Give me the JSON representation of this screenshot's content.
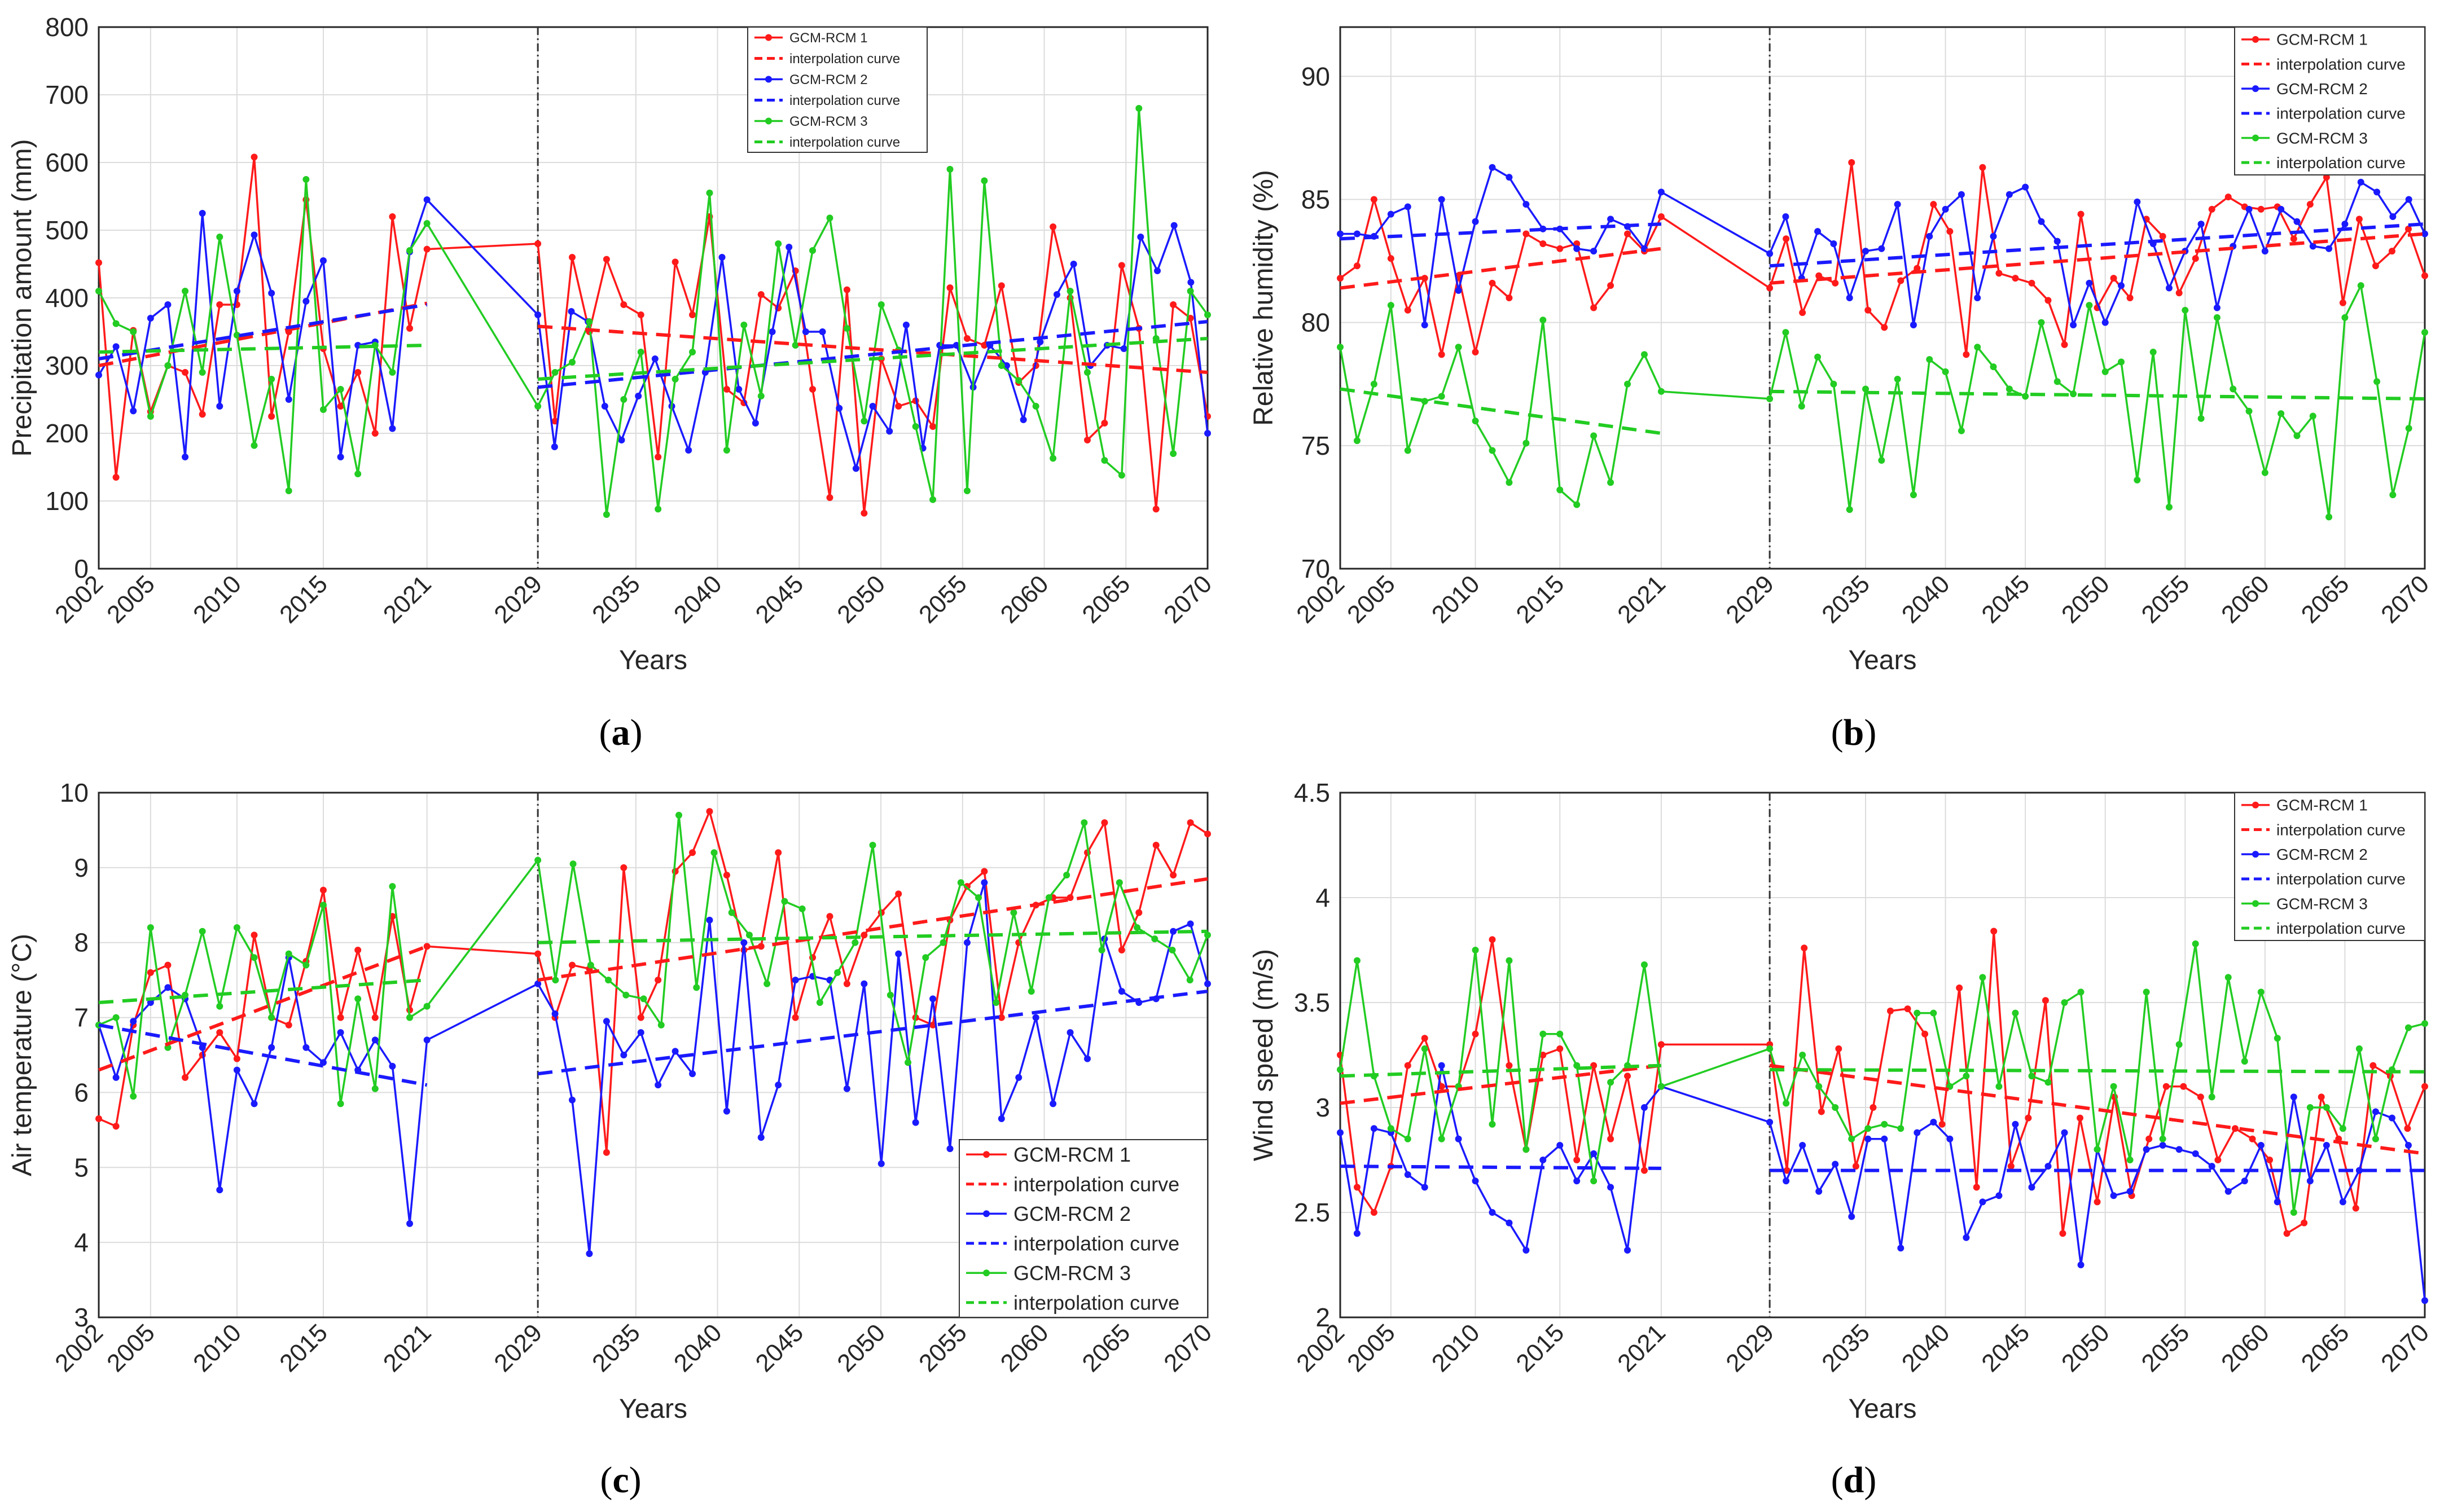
{
  "colors": {
    "model1": "#ff1a1a",
    "model2": "#1a1aff",
    "model3": "#22cc22",
    "axis": "#262626",
    "divider": "#333333"
  },
  "legend_labels": [
    "GCM-RCM 1",
    "interpolation curve",
    "GCM-RCM 2",
    "interpolation curve",
    "GCM-RCM 3",
    "interpolation curve"
  ],
  "chart_data": [
    {
      "type": "line",
      "panel_label": "a",
      "xlabel": "Years",
      "ylabel": "Precipitation amount (mm)",
      "ylim": [
        0,
        800
      ],
      "yticks": [
        0,
        100,
        200,
        300,
        400,
        500,
        600,
        700,
        800
      ],
      "xticks": [
        "2002",
        "2005",
        "2010",
        "2015",
        "2021",
        "2029",
        "2035",
        "2040",
        "2045",
        "2050",
        "2055",
        "2060",
        "2065",
        "2070"
      ],
      "legend_position": "top-right",
      "grid": true,
      "divider_x": 2029,
      "series": [
        {
          "name": "GCM-RCM 1",
          "hist": [
            452,
            135,
            352,
            232,
            300,
            290,
            228,
            390,
            390,
            608,
            225,
            350,
            545,
            325,
            240,
            290,
            200,
            520,
            355,
            472
          ],
          "fut": [
            480,
            218,
            460,
            350,
            457,
            390,
            375,
            165,
            453,
            375,
            520,
            265,
            245,
            405,
            385,
            440,
            265,
            105,
            412,
            82,
            310,
            240,
            248,
            210,
            415,
            340,
            330,
            418,
            275,
            300,
            505,
            400,
            190,
            215,
            448,
            355,
            88,
            390,
            370,
            225
          ]
        },
        {
          "name": "GCM-RCM 2",
          "hist": [
            286,
            328,
            233,
            370,
            390,
            165,
            525,
            240,
            410,
            493,
            407,
            250,
            395,
            455,
            165,
            330,
            335,
            207,
            468,
            545
          ],
          "fut": [
            375,
            180,
            380,
            365,
            240,
            190,
            255,
            310,
            240,
            175,
            290,
            460,
            265,
            215,
            350,
            475,
            350,
            350,
            237,
            148,
            240,
            203,
            360,
            178,
            330,
            330,
            268,
            330,
            300,
            220,
            335,
            405,
            450,
            300,
            330,
            325,
            490,
            440,
            507,
            423,
            200
          ]
        },
        {
          "name": "GCM-RCM 3",
          "hist": [
            410,
            362,
            350,
            225,
            300,
            410,
            290,
            490,
            345,
            182,
            280,
            115,
            575,
            235,
            265,
            140,
            330,
            290,
            470,
            510
          ],
          "fut": [
            240,
            290,
            305,
            365,
            80,
            250,
            320,
            88,
            280,
            320,
            555,
            175,
            360,
            255,
            480,
            330,
            470,
            518,
            355,
            218,
            390,
            323,
            210,
            102,
            590,
            115,
            573,
            300,
            278,
            240,
            163,
            410,
            290,
            160,
            138,
            680,
            340,
            170,
            410,
            375
          ]
        },
        {
          "name": "interpolation curve",
          "of": 1,
          "hist": [
            300,
            392
          ],
          "fut": [
            358,
            290
          ]
        },
        {
          "name": "interpolation curve",
          "of": 2,
          "hist": [
            310,
            390
          ],
          "fut": [
            268,
            365
          ]
        },
        {
          "name": "interpolation curve",
          "of": 3,
          "hist": [
            320,
            330
          ],
          "fut": [
            280,
            340
          ]
        }
      ]
    },
    {
      "type": "line",
      "panel_label": "b",
      "xlabel": "Years",
      "ylabel": "Relative humidity (%)",
      "ylim": [
        70,
        92
      ],
      "yticks": [
        70,
        75,
        80,
        85,
        90
      ],
      "xticks": [
        "2002",
        "2005",
        "2010",
        "2015",
        "2021",
        "2029",
        "2035",
        "2040",
        "2045",
        "2050",
        "2055",
        "2060",
        "2065",
        "2070"
      ],
      "legend_position": "top-right",
      "grid": true,
      "divider_x": 2029,
      "series": [
        {
          "name": "GCM-RCM 1",
          "hist": [
            81.8,
            82.3,
            85.0,
            82.6,
            80.5,
            81.8,
            78.7,
            81.9,
            78.8,
            81.6,
            81.0,
            83.6,
            83.2,
            83.0,
            83.2,
            80.6,
            81.5,
            83.6,
            82.9,
            84.3
          ],
          "fut": [
            81.4,
            83.4,
            80.4,
            81.9,
            81.6,
            86.5,
            80.5,
            79.8,
            81.7,
            82.2,
            84.8,
            83.7,
            78.7,
            86.3,
            82.0,
            81.8,
            81.6,
            80.9,
            79.1,
            84.4,
            80.6,
            81.8,
            81.0,
            84.2,
            83.5,
            81.2,
            82.6,
            84.6,
            85.1,
            84.7,
            84.6,
            84.7,
            83.4,
            84.8,
            85.9,
            80.8,
            84.2,
            82.3,
            82.9,
            83.8,
            81.9
          ]
        },
        {
          "name": "GCM-RCM 2",
          "hist": [
            83.6,
            83.6,
            83.5,
            84.4,
            84.7,
            79.9,
            85.0,
            81.3,
            84.1,
            86.3,
            85.9,
            84.8,
            83.8,
            83.8,
            83.0,
            82.9,
            84.2,
            83.9,
            83.0,
            85.3
          ],
          "fut": [
            82.8,
            84.3,
            81.8,
            83.7,
            83.2,
            81.0,
            82.9,
            83.0,
            84.8,
            79.9,
            83.5,
            84.6,
            85.2,
            81.0,
            83.5,
            85.2,
            85.5,
            84.1,
            83.3,
            79.9,
            81.6,
            80.0,
            81.5,
            84.9,
            83.2,
            81.4,
            82.9,
            84.0,
            80.6,
            83.1,
            84.6,
            82.9,
            84.6,
            84.1,
            83.1,
            83.0,
            84.0,
            85.7,
            85.3,
            84.3,
            85.0,
            83.6
          ]
        },
        {
          "name": "GCM-RCM 3",
          "hist": [
            79.0,
            75.2,
            77.5,
            80.7,
            74.8,
            76.8,
            77.0,
            79.0,
            76.0,
            74.8,
            73.5,
            75.1,
            80.1,
            73.2,
            72.6,
            75.4,
            73.5,
            77.5,
            78.7,
            77.2
          ],
          "fut": [
            76.9,
            79.6,
            76.6,
            78.6,
            77.5,
            72.4,
            77.3,
            74.4,
            77.7,
            73.0,
            78.5,
            78.0,
            75.6,
            79.0,
            78.2,
            77.3,
            77.0,
            80.0,
            77.6,
            77.1,
            80.7,
            78.0,
            78.4,
            73.6,
            78.8,
            72.5,
            80.5,
            76.1,
            80.2,
            77.3,
            76.4,
            73.9,
            76.3,
            75.4,
            76.2,
            72.1,
            80.2,
            81.5,
            77.6,
            73.0,
            75.7,
            79.6
          ]
        },
        {
          "name": "interpolation curve",
          "of": 1,
          "hist": [
            81.4,
            83.0
          ],
          "fut": [
            81.6,
            83.6
          ]
        },
        {
          "name": "interpolation curve",
          "of": 2,
          "hist": [
            83.4,
            84.0
          ],
          "fut": [
            82.3,
            84.0
          ]
        },
        {
          "name": "interpolation curve",
          "of": 3,
          "hist": [
            77.3,
            75.5
          ],
          "fut": [
            77.2,
            76.9
          ]
        }
      ]
    },
    {
      "type": "line",
      "panel_label": "c",
      "xlabel": "Years",
      "ylabel": "Air temperature (°C)",
      "ylim": [
        3,
        10
      ],
      "yticks": [
        3,
        4,
        5,
        6,
        7,
        8,
        9,
        10
      ],
      "xticks": [
        "2002",
        "2005",
        "2010",
        "2015",
        "2021",
        "2029",
        "2035",
        "2040",
        "2045",
        "2050",
        "2055",
        "2060",
        "2065",
        "2070"
      ],
      "legend_position": "bottom-right",
      "grid": true,
      "divider_x": 2029,
      "series": [
        {
          "name": "GCM-RCM 1",
          "hist": [
            5.65,
            5.55,
            6.9,
            7.6,
            7.7,
            6.2,
            6.5,
            6.8,
            6.45,
            8.1,
            7.0,
            6.9,
            7.75,
            8.7,
            7.0,
            7.9,
            7.0,
            8.35,
            7.1,
            7.95
          ],
          "fut": [
            7.85,
            7.0,
            7.7,
            7.65,
            5.2,
            9.0,
            7.0,
            7.5,
            8.95,
            9.2,
            9.75,
            8.9,
            7.9,
            7.95,
            9.2,
            7.0,
            7.8,
            8.35,
            7.45,
            8.1,
            8.4,
            8.65,
            7.0,
            6.9,
            8.3,
            8.75,
            8.95,
            7.0,
            8.0,
            8.5,
            8.6,
            8.6,
            9.2,
            9.6,
            7.9,
            8.4,
            9.3,
            8.9,
            9.6,
            9.45
          ]
        },
        {
          "name": "GCM-RCM 2",
          "hist": [
            6.9,
            6.2,
            6.95,
            7.2,
            7.4,
            7.25,
            6.6,
            4.7,
            6.3,
            5.85,
            6.6,
            7.8,
            6.6,
            6.4,
            6.8,
            6.3,
            6.7,
            6.35,
            4.25,
            6.7
          ],
          "fut": [
            7.45,
            7.05,
            5.9,
            3.85,
            6.95,
            6.5,
            6.8,
            6.1,
            6.55,
            6.25,
            8.3,
            5.75,
            8.0,
            5.4,
            6.1,
            7.5,
            7.55,
            7.5,
            6.05,
            7.45,
            5.05,
            7.85,
            5.6,
            7.25,
            5.25,
            8.0,
            8.8,
            5.65,
            6.2,
            7.0,
            5.85,
            6.8,
            6.45,
            8.05,
            7.35,
            7.2,
            7.25,
            8.15,
            8.25,
            7.45
          ]
        },
        {
          "name": "GCM-RCM 3",
          "hist": [
            6.9,
            7.0,
            5.95,
            8.2,
            6.6,
            7.3,
            8.15,
            7.15,
            8.2,
            7.8,
            7.0,
            7.85,
            7.7,
            8.5,
            5.85,
            7.25,
            6.05,
            8.75,
            7.0,
            7.15
          ],
          "fut": [
            9.1,
            7.5,
            9.05,
            7.7,
            7.5,
            7.3,
            7.25,
            6.9,
            9.7,
            7.4,
            9.2,
            8.4,
            8.1,
            7.45,
            8.55,
            8.45,
            7.2,
            7.6,
            8.0,
            9.3,
            7.3,
            6.4,
            7.8,
            8.0,
            8.8,
            8.6,
            7.2,
            8.4,
            7.35,
            8.6,
            8.9,
            9.6,
            7.9,
            8.8,
            8.2,
            8.05,
            7.9,
            7.5,
            8.1
          ]
        },
        {
          "name": "interpolation curve",
          "of": 1,
          "hist": [
            6.3,
            7.95
          ],
          "fut": [
            7.5,
            8.85
          ]
        },
        {
          "name": "interpolation curve",
          "of": 2,
          "hist": [
            6.9,
            6.1
          ],
          "fut": [
            6.25,
            7.35
          ]
        },
        {
          "name": "interpolation curve",
          "of": 3,
          "hist": [
            7.2,
            7.5
          ],
          "fut": [
            8.0,
            8.15
          ]
        }
      ]
    },
    {
      "type": "line",
      "panel_label": "d",
      "xlabel": "Years",
      "ylabel": "Wind speed (m/s)",
      "ylim": [
        2,
        4.5
      ],
      "yticks": [
        2,
        2.5,
        3,
        3.5,
        4,
        4.5
      ],
      "xticks": [
        "2002",
        "2005",
        "2010",
        "2015",
        "2021",
        "2029",
        "2035",
        "2040",
        "2045",
        "2050",
        "2055",
        "2060",
        "2065",
        "2070"
      ],
      "legend_position": "top-right",
      "grid": true,
      "divider_x": 2029,
      "series": [
        {
          "name": "GCM-RCM 1",
          "hist": [
            3.25,
            2.62,
            2.5,
            2.72,
            3.2,
            3.33,
            3.1,
            3.1,
            3.35,
            3.8,
            3.2,
            2.8,
            3.25,
            3.28,
            2.75,
            3.2,
            2.85,
            3.15,
            2.7,
            3.3
          ],
          "fut": [
            3.3,
            2.7,
            3.76,
            2.98,
            3.28,
            2.72,
            3.0,
            3.46,
            3.47,
            3.35,
            2.92,
            3.57,
            2.62,
            3.84,
            2.72,
            2.95,
            3.51,
            2.4,
            2.95,
            2.55,
            3.05,
            2.58,
            2.85,
            3.1,
            3.1,
            3.05,
            2.75,
            2.9,
            2.85,
            2.75,
            2.4,
            2.45,
            3.05,
            2.85,
            2.52,
            3.2,
            3.15,
            2.9,
            3.1
          ]
        },
        {
          "name": "GCM-RCM 2",
          "hist": [
            2.88,
            2.4,
            2.9,
            2.88,
            2.68,
            2.62,
            3.2,
            2.85,
            2.65,
            2.5,
            2.45,
            2.32,
            2.75,
            2.82,
            2.65,
            2.78,
            2.62,
            2.32,
            3.0,
            3.1
          ],
          "fut": [
            2.93,
            2.65,
            2.82,
            2.6,
            2.73,
            2.48,
            2.85,
            2.85,
            2.33,
            2.88,
            2.93,
            2.85,
            2.38,
            2.55,
            2.58,
            2.92,
            2.62,
            2.72,
            2.88,
            2.25,
            2.8,
            2.58,
            2.6,
            2.8,
            2.82,
            2.8,
            2.78,
            2.72,
            2.6,
            2.65,
            2.82,
            2.55,
            3.05,
            2.65,
            2.82,
            2.55,
            2.7,
            2.98,
            2.95,
            2.82,
            2.08
          ]
        },
        {
          "name": "GCM-RCM 3",
          "hist": [
            3.18,
            3.7,
            3.15,
            2.9,
            2.85,
            3.28,
            2.85,
            3.1,
            3.75,
            2.92,
            3.7,
            2.8,
            3.35,
            3.35,
            3.2,
            2.65,
            3.12,
            3.2,
            3.68,
            3.1
          ],
          "fut": [
            3.28,
            3.02,
            3.25,
            3.1,
            3.0,
            2.85,
            2.9,
            2.92,
            2.9,
            3.45,
            3.45,
            3.1,
            3.15,
            3.62,
            3.1,
            3.45,
            3.15,
            3.12,
            3.5,
            3.55,
            2.8,
            3.1,
            2.75,
            3.55,
            2.85,
            3.3,
            3.78,
            3.05,
            3.62,
            3.22,
            3.55,
            3.33,
            2.5,
            3.0,
            3.0,
            2.9,
            3.28,
            2.85,
            3.18,
            3.38,
            3.4
          ]
        },
        {
          "name": "interpolation curve",
          "of": 1,
          "hist": [
            3.02,
            3.2
          ],
          "fut": [
            3.2,
            2.78
          ]
        },
        {
          "name": "interpolation curve",
          "of": 2,
          "hist": [
            2.72,
            2.71
          ],
          "fut": [
            2.7,
            2.7
          ]
        },
        {
          "name": "interpolation curve",
          "of": 3,
          "hist": [
            3.15,
            3.2
          ],
          "fut": [
            3.18,
            3.17
          ]
        }
      ]
    }
  ]
}
